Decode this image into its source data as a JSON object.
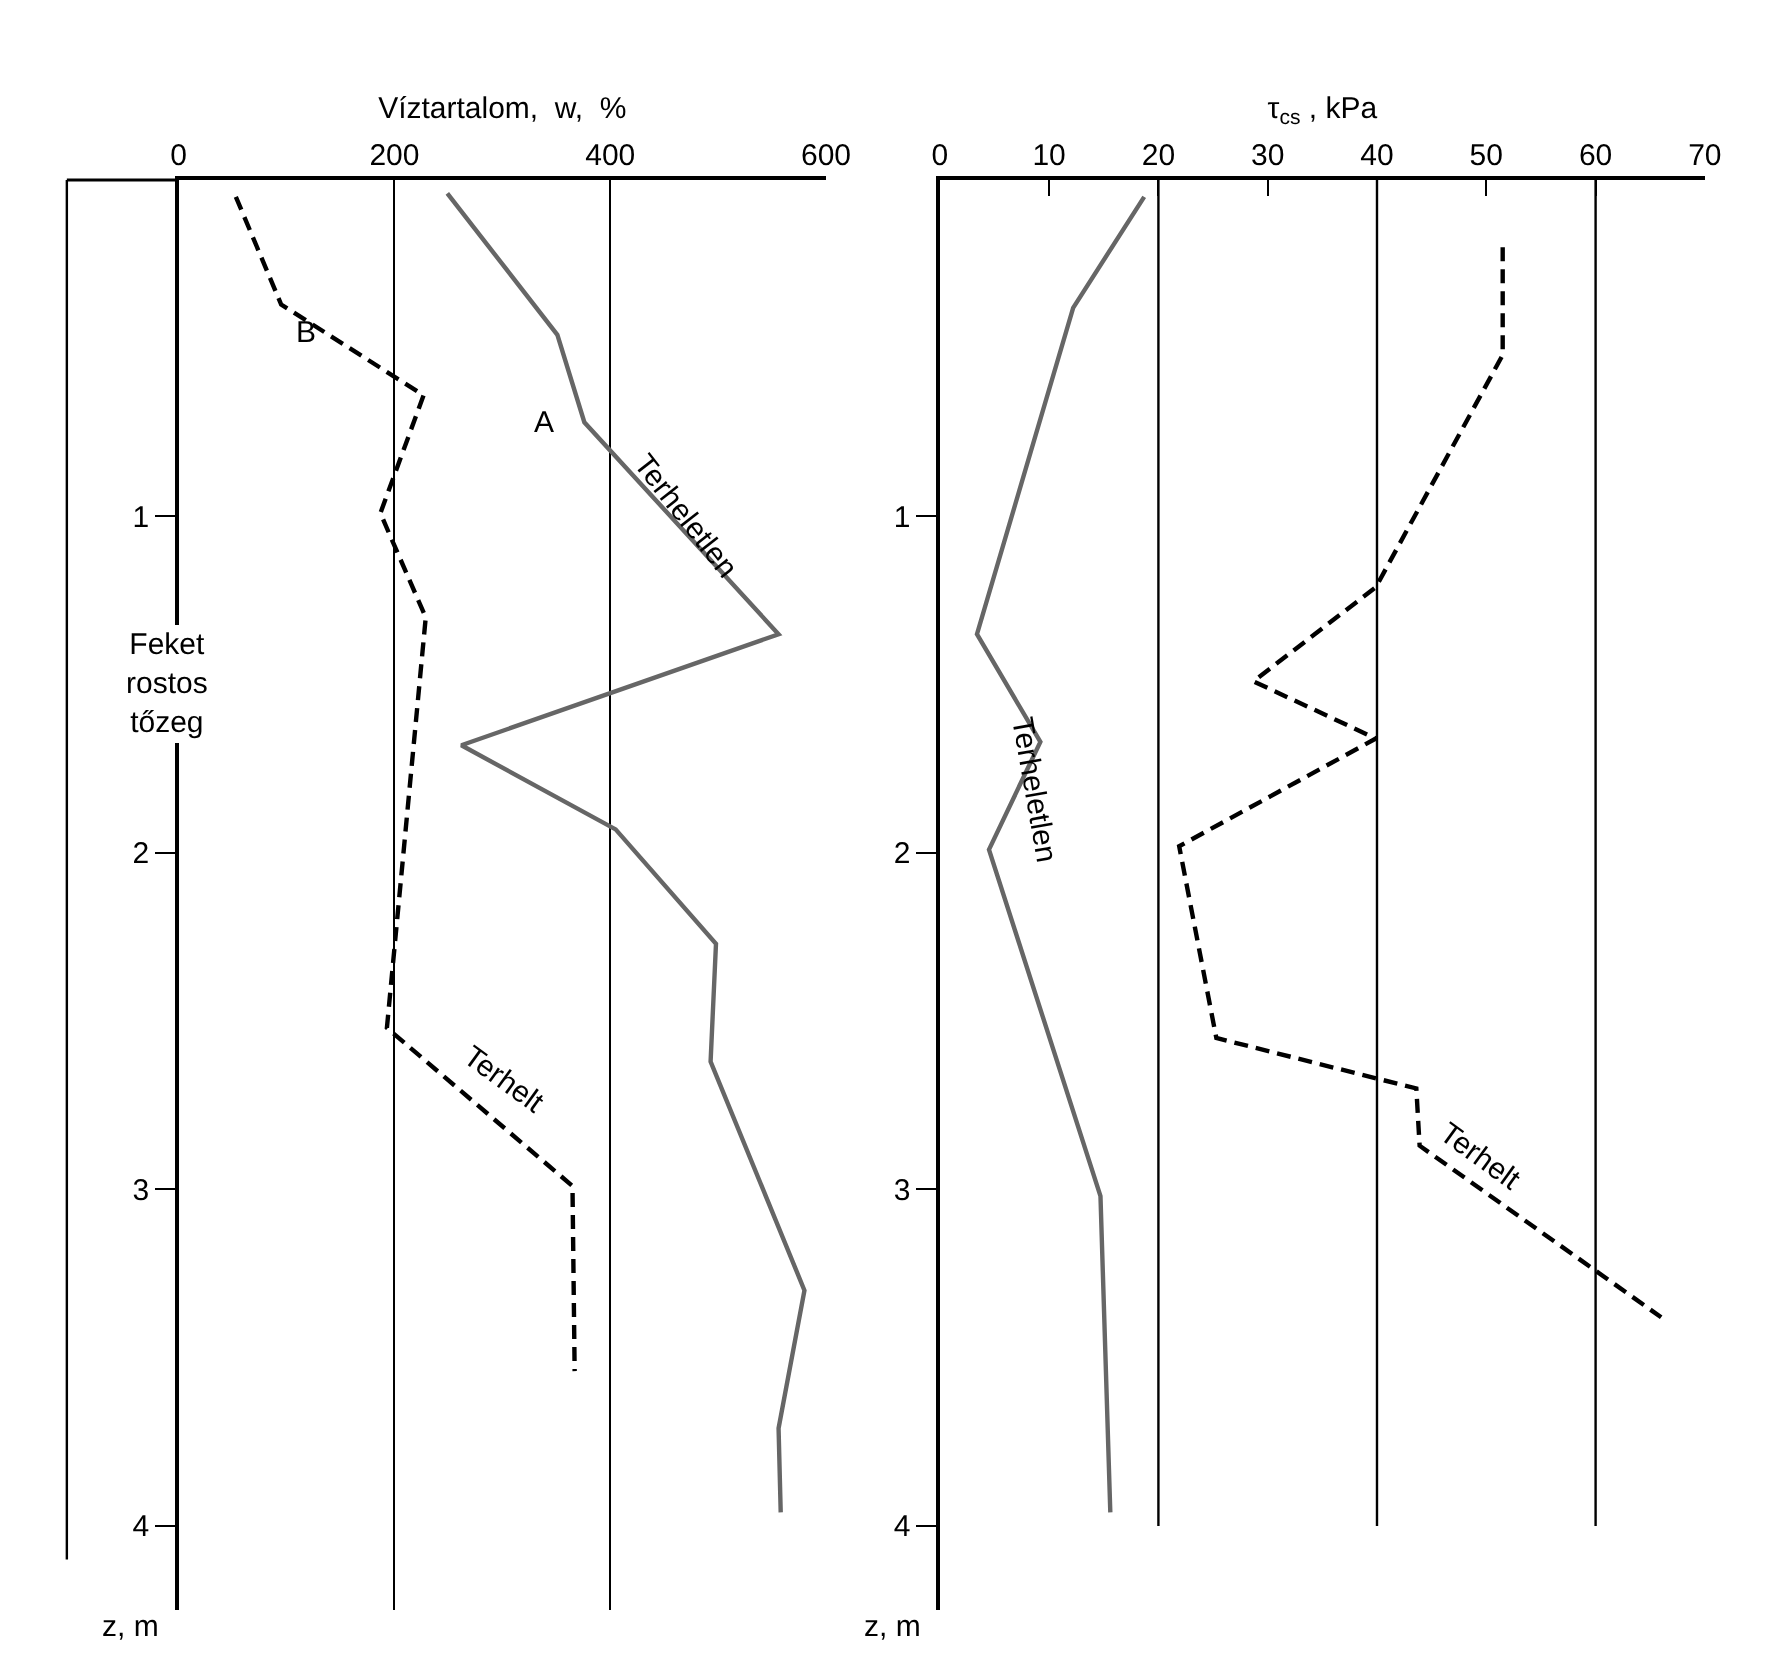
{
  "chart_data": [
    {
      "type": "line",
      "xlabel": "Víztartalom,  w,  %",
      "ylabel": "z, m",
      "xlim": [
        0,
        600
      ],
      "xticks": [
        0,
        200,
        400,
        600
      ],
      "ylim": [
        4.25,
        0
      ],
      "yticks": [
        1,
        2,
        3,
        4
      ],
      "grid": "x",
      "marker": "none",
      "series": [
        {
          "name": "A",
          "color": "#666666",
          "line_style": "solid",
          "x": [
            249,
            351,
            376,
            556,
            262,
            405,
            498,
            493,
            580,
            556,
            558
          ],
          "values": [
            0.04,
            0.46,
            0.72,
            1.35,
            1.68,
            1.93,
            2.27,
            2.62,
            3.3,
            3.71,
            3.96
          ]
        },
        {
          "name": "B",
          "color": "#000000",
          "line_style": "dashed",
          "x": [
            53,
            95,
            227,
            187,
            195,
            229,
            193,
            365,
            367
          ],
          "values": [
            0.05,
            0.37,
            0.64,
            0.99,
            1.05,
            1.3,
            2.52,
            2.99,
            3.54
          ]
        }
      ],
      "annotations": [
        {
          "text": "Terheletlen",
          "x": 470,
          "y": 1.0
        },
        {
          "text": "Terhelt",
          "x": 280,
          "y": 2.76
        },
        "Feket rostos tőzeg"
      ]
    },
    {
      "type": "line",
      "xlabel": "τ$_{cs}$ , kPa",
      "ylabel": "z, m",
      "xlim": [
        0,
        70
      ],
      "xticks": [
        0,
        10,
        20,
        30,
        40,
        50,
        60,
        70
      ],
      "ylim": [
        4.25,
        0
      ],
      "yticks": [
        1,
        2,
        3,
        4
      ],
      "marker": "none",
      "ref_lines": [
        {
          "axis": "x",
          "value": 20
        },
        {
          "axis": "x",
          "value": 40
        },
        {
          "axis": "x",
          "value": 60
        }
      ],
      "series": [
        {
          "name": "Terheletlen",
          "color": "#666666",
          "line_style": "solid",
          "x": [
            18.7,
            12.2,
            3.4,
            9.2,
            4.5,
            14.7,
            15.6
          ],
          "values": [
            0.05,
            0.38,
            1.35,
            1.67,
            1.99,
            3.02,
            3.96
          ]
        },
        {
          "name": "Terhelt",
          "color": "#000000",
          "line_style": "dashed",
          "x": [
            51.5,
            51.5,
            39.9,
            28.7,
            39.9,
            21.9,
            25.3,
            43.6,
            43.9,
            66.0
          ],
          "values": [
            0.2,
            0.52,
            1.21,
            1.49,
            1.66,
            1.98,
            2.55,
            2.7,
            2.87,
            3.38
          ]
        }
      ]
    }
  ]
}
